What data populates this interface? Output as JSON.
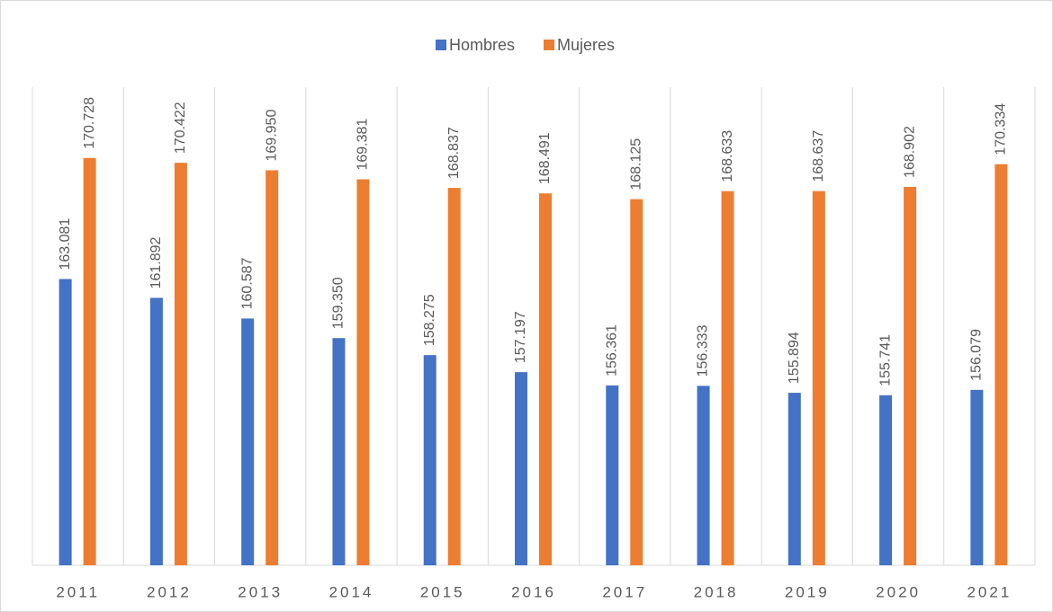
{
  "chart_data": {
    "type": "bar",
    "categories": [
      "2011",
      "2012",
      "2013",
      "2014",
      "2015",
      "2016",
      "2017",
      "2018",
      "2019",
      "2020",
      "2021"
    ],
    "series": [
      {
        "name": "Hombres",
        "color": "#4472c4",
        "values": [
          163081,
          161892,
          160587,
          159350,
          158275,
          157197,
          156361,
          156333,
          155894,
          155741,
          156079
        ],
        "value_labels": [
          "163.081",
          "161.892",
          "160.587",
          "159.350",
          "158.275",
          "157.197",
          "156.361",
          "156.333",
          "155.894",
          "155.741",
          "156.079"
        ]
      },
      {
        "name": "Mujeres",
        "color": "#ed7d31",
        "values": [
          170728,
          170422,
          169950,
          169381,
          168837,
          168491,
          168125,
          168633,
          168637,
          168902,
          170334
        ],
        "value_labels": [
          "170.728",
          "170.422",
          "169.950",
          "169.381",
          "168.837",
          "168.491",
          "168.125",
          "168.633",
          "168.637",
          "168.902",
          "170.334"
        ]
      }
    ],
    "ylim": [
      145000,
      175200
    ],
    "grid": true,
    "legend": "top"
  }
}
